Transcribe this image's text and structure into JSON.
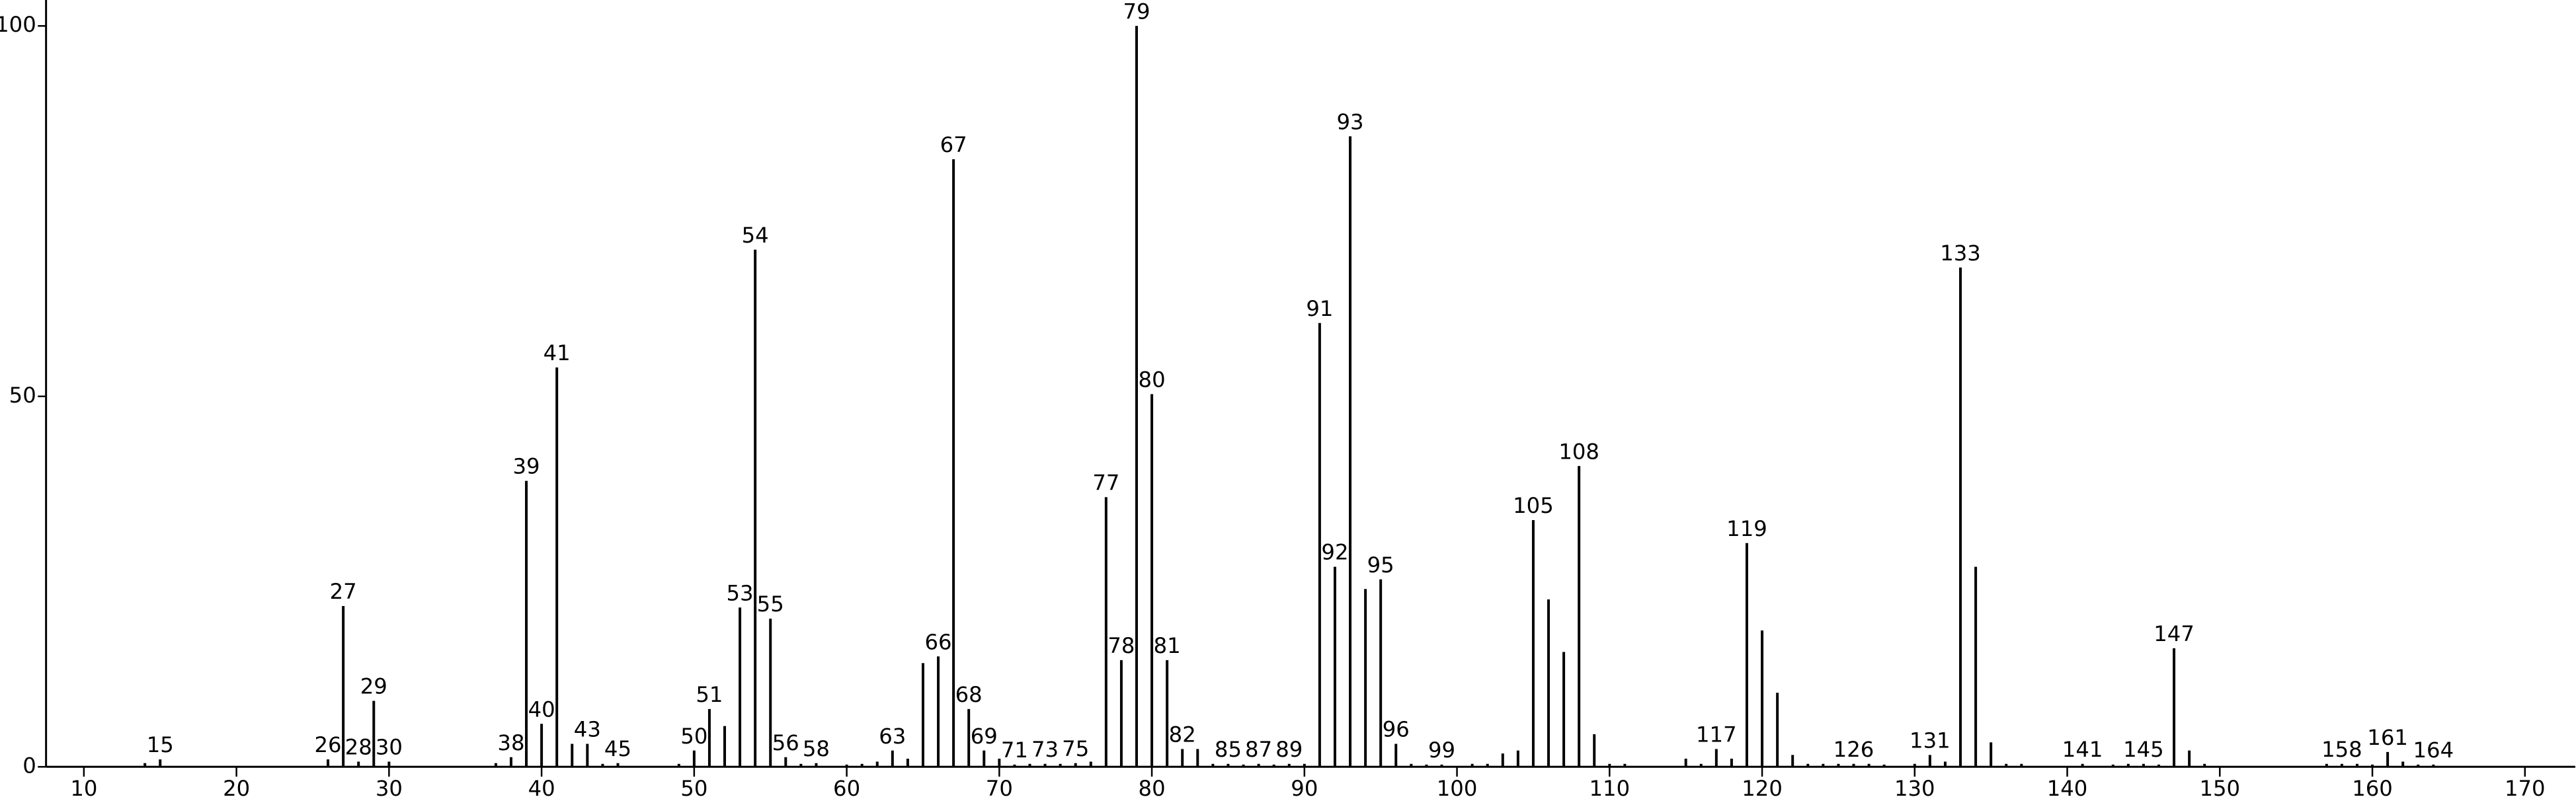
{
  "chart_data": {
    "type": "stem",
    "x": [
      14,
      15,
      26,
      27,
      28,
      29,
      30,
      37,
      38,
      39,
      40,
      41,
      42,
      43,
      44,
      45,
      49,
      50,
      51,
      52,
      53,
      54,
      55,
      56,
      57,
      58,
      60,
      61,
      62,
      63,
      64,
      65,
      66,
      67,
      68,
      69,
      70,
      71,
      72,
      73,
      74,
      75,
      76,
      77,
      78,
      79,
      80,
      81,
      82,
      83,
      84,
      85,
      86,
      87,
      88,
      89,
      90,
      91,
      92,
      93,
      94,
      95,
      96,
      97,
      98,
      99,
      101,
      102,
      103,
      104,
      105,
      106,
      107,
      108,
      109,
      110,
      111,
      115,
      116,
      117,
      118,
      119,
      120,
      121,
      122,
      123,
      124,
      125,
      126,
      127,
      128,
      130,
      131,
      132,
      133,
      134,
      135,
      136,
      137,
      141,
      143,
      144,
      145,
      146,
      147,
      148,
      149,
      157,
      158,
      159,
      160,
      161,
      162,
      163,
      164
    ],
    "values": [
      0.5,
      1,
      1,
      21.7,
      0.7,
      8.9,
      0.7,
      0.5,
      1.3,
      38.6,
      5.8,
      53.9,
      3.1,
      3.1,
      0.4,
      0.5,
      0.4,
      2.2,
      7.8,
      5.5,
      21.5,
      69.8,
      20,
      1.3,
      0.4,
      0.5,
      0.3,
      0.4,
      0.7,
      2.2,
      1.1,
      14,
      14.9,
      82,
      7.8,
      2.2,
      1.1,
      0.3,
      0.4,
      0.4,
      0.4,
      0.5,
      0.7,
      36.4,
      14.4,
      100,
      50.3,
      14.4,
      2.4,
      2.4,
      0.4,
      0.4,
      0.3,
      0.4,
      0.3,
      0.4,
      0.4,
      59.9,
      27,
      85.1,
      24,
      25.3,
      3.1,
      0.4,
      0.3,
      0.3,
      0.4,
      0.4,
      1.8,
      2.2,
      33.3,
      22.6,
      15.5,
      40.6,
      4.4,
      0.4,
      0.4,
      1.1,
      0.4,
      2.4,
      1.1,
      30.2,
      18.4,
      10,
      1.6,
      0.4,
      0.4,
      0.4,
      0.4,
      0.4,
      0.3,
      0.4,
      1.6,
      0.7,
      67.4,
      27,
      3.3,
      0.4,
      0.4,
      0.4,
      0.3,
      0.4,
      0.4,
      0.3,
      16,
      2.2,
      0.4,
      0.4,
      0.4,
      0.4,
      0.3,
      2,
      0.7,
      0.3,
      0.3
    ],
    "labeled_peaks": [
      15,
      26,
      27,
      28,
      29,
      30,
      38,
      39,
      40,
      41,
      43,
      45,
      50,
      51,
      53,
      54,
      55,
      56,
      58,
      63,
      66,
      67,
      68,
      69,
      71,
      73,
      75,
      77,
      78,
      79,
      80,
      81,
      82,
      85,
      87,
      89,
      91,
      92,
      93,
      95,
      96,
      99,
      105,
      108,
      117,
      119,
      126,
      131,
      133,
      141,
      145,
      147,
      158,
      161,
      164
    ],
    "color": "#000000",
    "xlim": [
      7.52,
      173.3
    ],
    "ylim": [
      0,
      103.5
    ],
    "xticks": [
      10,
      20,
      30,
      40,
      50,
      60,
      70,
      80,
      90,
      100,
      110,
      120,
      130,
      140,
      150,
      160,
      170
    ],
    "yticks": [
      0,
      50,
      100
    ]
  }
}
